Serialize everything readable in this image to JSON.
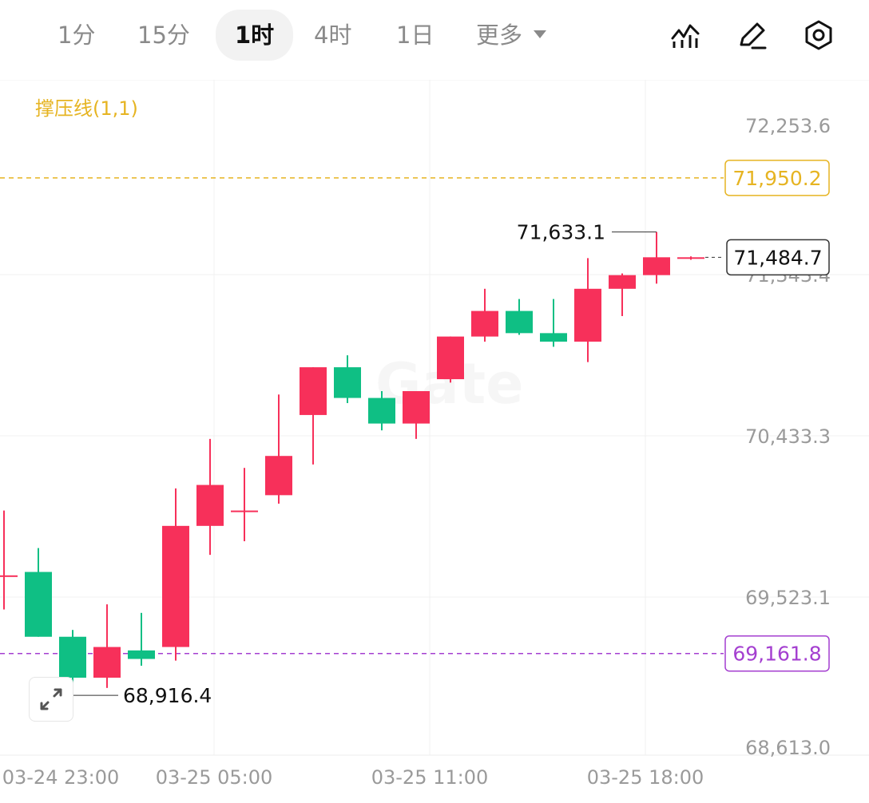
{
  "toolbar": {
    "tabs": [
      {
        "label": "1分",
        "active": false
      },
      {
        "label": "15分",
        "active": false
      },
      {
        "label": "1时",
        "active": true
      },
      {
        "label": "4时",
        "active": false
      },
      {
        "label": "1日",
        "active": false
      }
    ],
    "more_label": "更多",
    "tools": [
      "indicator-chart-icon",
      "pencil-icon",
      "settings-gear-icon"
    ]
  },
  "indicator_label": "撑压线(1,1)",
  "watermark": "Gate",
  "colors": {
    "up": "#f7305a",
    "down": "#0fbf84",
    "resistance": "#e6b422",
    "support": "#a43fd0",
    "grid": "#f0f0f0",
    "axis_text": "#9a9a9a"
  },
  "chart_data": {
    "type": "candlestick",
    "ylim": [
      68613.0,
      72253.6
    ],
    "y_ticks": [
      "72,253.6",
      "71,343.4",
      "70,433.3",
      "69,523.1",
      "68,613.0"
    ],
    "x_ticks": [
      "03-24 23:00",
      "03-25 05:00",
      "03-25 11:00",
      "03-25 18:00"
    ],
    "resistance": {
      "value": 71950.2,
      "label": "71,950.2"
    },
    "support": {
      "value": 69161.8,
      "label": "69,161.8"
    },
    "last_price": {
      "value": 71484.7,
      "label": "71,484.7"
    },
    "high_marker": {
      "value": 71633.1,
      "label": "71,633.1"
    },
    "low_marker": {
      "value": 68916.4,
      "label": "68,916.4"
    },
    "candles": [
      {
        "open": 69620,
        "high": 70000,
        "low": 69420,
        "close": 69620
      },
      {
        "open": 69640,
        "high": 69780,
        "low": 69260,
        "close": 69260
      },
      {
        "open": 69260,
        "high": 69300,
        "low": 68916.4,
        "close": 69020
      },
      {
        "open": 69020,
        "high": 69450,
        "low": 68960,
        "close": 69200
      },
      {
        "open": 69180,
        "high": 69400,
        "low": 69090,
        "close": 69130
      },
      {
        "open": 69200,
        "high": 70130,
        "low": 69120,
        "close": 69910
      },
      {
        "open": 69910,
        "high": 70420,
        "low": 69740,
        "close": 70150
      },
      {
        "open": 70000,
        "high": 70250,
        "low": 69820,
        "close": 70000
      },
      {
        "open": 70090,
        "high": 70680,
        "low": 70040,
        "close": 70320
      },
      {
        "open": 70560,
        "high": 70840,
        "low": 70270,
        "close": 70840
      },
      {
        "open": 70840,
        "high": 70910,
        "low": 70630,
        "close": 70660
      },
      {
        "open": 70660,
        "high": 70700,
        "low": 70470,
        "close": 70510
      },
      {
        "open": 70510,
        "high": 70700,
        "low": 70420,
        "close": 70700
      },
      {
        "open": 70770,
        "high": 71020,
        "low": 70750,
        "close": 71020
      },
      {
        "open": 71020,
        "high": 71300,
        "low": 70990,
        "close": 71170
      },
      {
        "open": 71170,
        "high": 71240,
        "low": 71030,
        "close": 71040
      },
      {
        "open": 71040,
        "high": 71240,
        "low": 70960,
        "close": 70990
      },
      {
        "open": 70990,
        "high": 71480,
        "low": 70870,
        "close": 71300
      },
      {
        "open": 71300,
        "high": 71390,
        "low": 71140,
        "close": 71380
      },
      {
        "open": 71380,
        "high": 71633.1,
        "low": 71330,
        "close": 71484.7
      },
      {
        "open": 71484.7,
        "high": 71490,
        "low": 71470,
        "close": 71484.7
      }
    ]
  }
}
